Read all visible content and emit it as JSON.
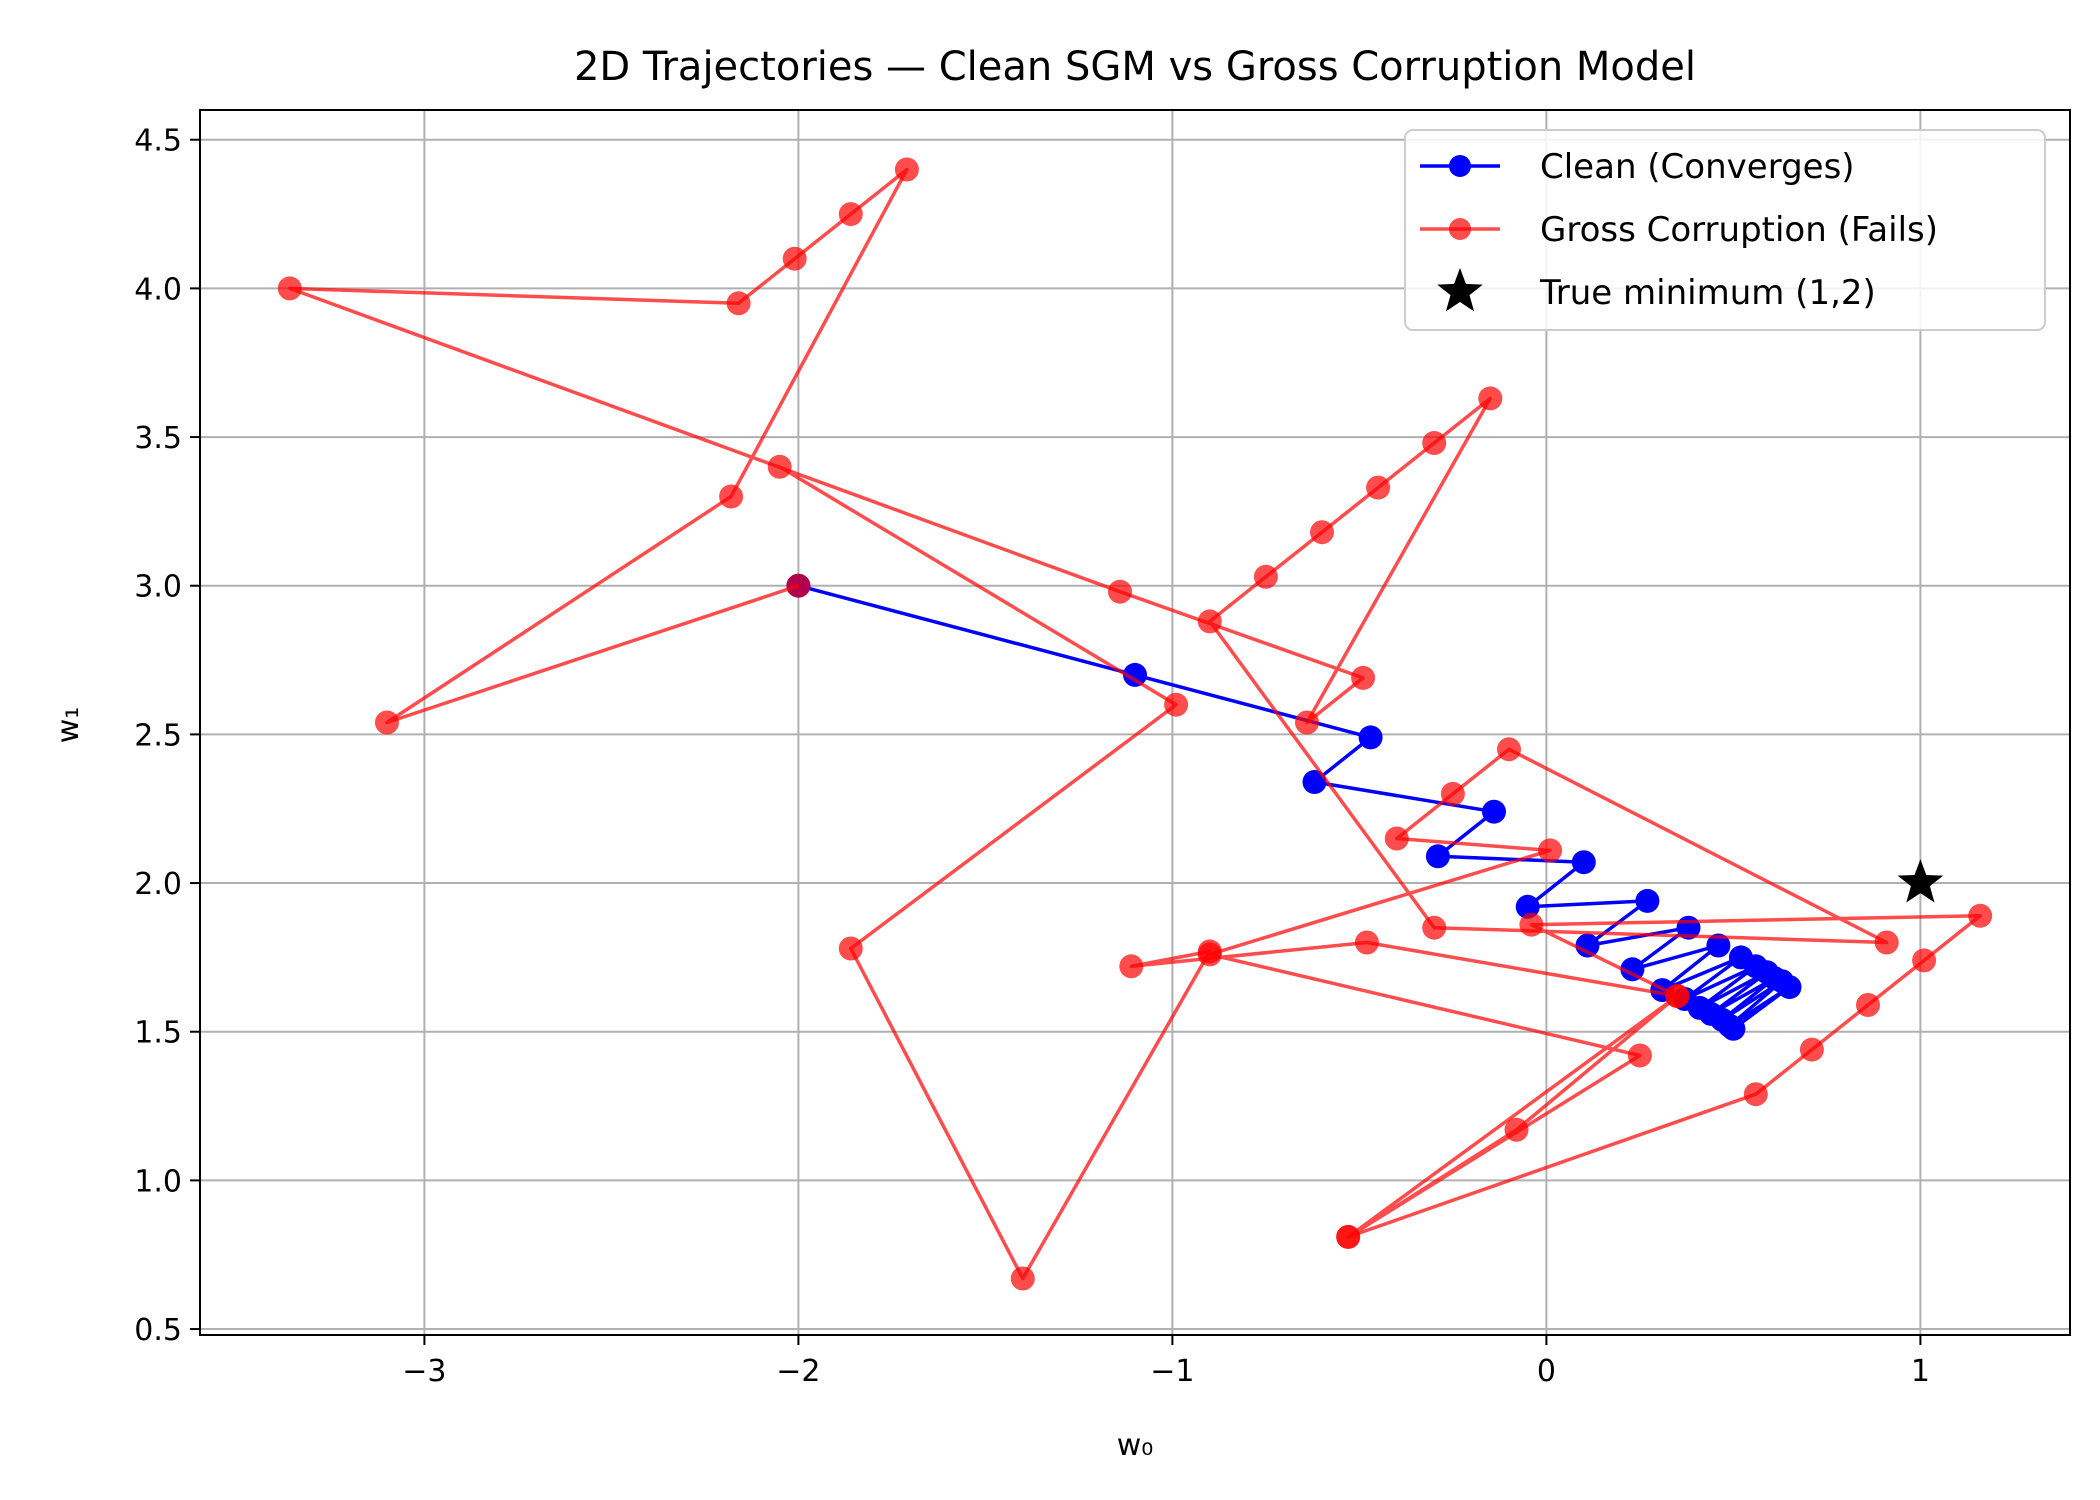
{
  "chart_data": {
    "type": "line",
    "title": "2D Trajectories — Clean SGM vs Gross Corruption Model",
    "xlabel": "w₀",
    "ylabel": "w₁",
    "xlim": [
      -3.6,
      1.4
    ],
    "ylim": [
      0.48,
      4.6
    ],
    "xticks": [
      -3,
      -2,
      -1,
      0,
      1
    ],
    "xtick_labels": [
      "−3",
      "−2",
      "−1",
      "0",
      "1"
    ],
    "yticks": [
      0.5,
      1.0,
      1.5,
      2.0,
      2.5,
      3.0,
      3.5,
      4.0,
      4.5
    ],
    "ytick_labels": [
      "0.5",
      "1.0",
      "1.5",
      "2.0",
      "2.5",
      "3.0",
      "3.5",
      "4.0",
      "4.5"
    ],
    "grid": true,
    "legend_position": "top-right",
    "series": [
      {
        "name": "Clean (Converges)",
        "color": "#0000ff",
        "marker": "circle",
        "points": [
          [
            -2.0,
            3.0
          ],
          [
            -1.1,
            2.7
          ],
          [
            -0.47,
            2.49
          ],
          [
            -0.62,
            2.34
          ],
          [
            -0.14,
            2.24
          ],
          [
            -0.29,
            2.09
          ],
          [
            0.1,
            2.07
          ],
          [
            -0.05,
            1.92
          ],
          [
            0.27,
            1.94
          ],
          [
            0.11,
            1.79
          ],
          [
            0.38,
            1.85
          ],
          [
            0.23,
            1.71
          ],
          [
            0.46,
            1.79
          ],
          [
            0.31,
            1.64
          ],
          [
            0.52,
            1.75
          ],
          [
            0.37,
            1.61
          ],
          [
            0.56,
            1.72
          ],
          [
            0.41,
            1.58
          ],
          [
            0.59,
            1.7
          ],
          [
            0.44,
            1.56
          ],
          [
            0.61,
            1.68
          ],
          [
            0.47,
            1.54
          ],
          [
            0.63,
            1.67
          ],
          [
            0.49,
            1.52
          ],
          [
            0.65,
            1.65
          ],
          [
            0.5,
            1.51
          ]
        ]
      },
      {
        "name": "Gross Corruption (Fails)",
        "color": "#ff0000",
        "marker": "circle",
        "points": [
          [
            -2.0,
            3.0
          ],
          [
            -3.1,
            2.54
          ],
          [
            -2.18,
            3.3
          ],
          [
            -1.71,
            4.4
          ],
          [
            -1.86,
            4.25
          ],
          [
            -2.01,
            4.1
          ],
          [
            -2.16,
            3.95
          ],
          [
            -3.36,
            4.0
          ],
          [
            -1.14,
            2.98
          ],
          [
            -0.49,
            2.69
          ],
          [
            -0.64,
            2.54
          ],
          [
            -0.15,
            3.63
          ],
          [
            -0.3,
            3.48
          ],
          [
            -0.45,
            3.33
          ],
          [
            -0.6,
            3.18
          ],
          [
            -0.75,
            3.03
          ],
          [
            -0.9,
            2.88
          ],
          [
            -0.3,
            1.85
          ],
          [
            0.91,
            1.8
          ],
          [
            -0.1,
            2.45
          ],
          [
            -0.25,
            2.3
          ],
          [
            -0.4,
            2.15
          ],
          [
            0.01,
            2.11
          ],
          [
            -0.9,
            1.76
          ],
          [
            0.25,
            1.42
          ],
          [
            -0.53,
            0.81
          ],
          [
            0.35,
            1.62
          ],
          [
            -0.04,
            1.86
          ],
          [
            1.16,
            1.89
          ],
          [
            1.01,
            1.74
          ],
          [
            0.86,
            1.59
          ],
          [
            0.71,
            1.44
          ],
          [
            0.56,
            1.29
          ],
          [
            -0.53,
            0.81
          ],
          [
            -0.08,
            1.17
          ],
          [
            0.35,
            1.62
          ],
          [
            -0.48,
            1.8
          ],
          [
            -1.11,
            1.72
          ],
          [
            -0.9,
            1.77
          ],
          [
            -1.4,
            0.67
          ],
          [
            -1.86,
            1.78
          ],
          [
            -0.99,
            2.6
          ],
          [
            -2.05,
            3.4
          ]
        ]
      }
    ],
    "markers": [
      {
        "name": "True minimum (1,2)",
        "symbol": "star",
        "color": "#000000",
        "x": 1,
        "y": 2
      }
    ]
  }
}
